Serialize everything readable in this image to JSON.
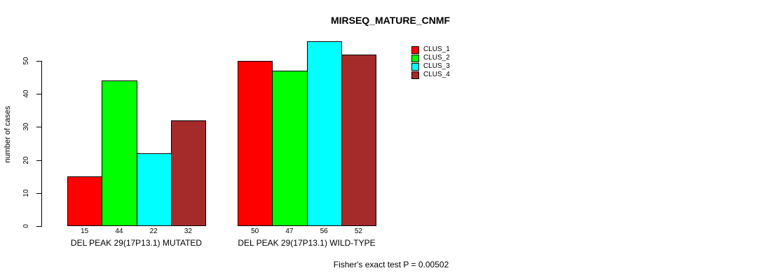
{
  "chart_data": {
    "type": "bar",
    "title": "MIRSEQ_MATURE_CNMF",
    "ylabel": "number of cases",
    "xlabel": "",
    "ylim": [
      0,
      56
    ],
    "yticks": [
      0,
      10,
      20,
      30,
      40,
      50
    ],
    "grid": false,
    "legend_position": "top-right",
    "show_bar_value_labels": true,
    "categories": [
      "DEL PEAK 29(17P13.1) MUTATED",
      "DEL PEAK 29(17P13.1) WILD-TYPE"
    ],
    "series": [
      {
        "name": "CLUS_1",
        "color": "#FF0000",
        "values": [
          15,
          50
        ]
      },
      {
        "name": "CLUS_2",
        "color": "#00FF00",
        "values": [
          44,
          47
        ]
      },
      {
        "name": "CLUS_3",
        "color": "#00FFFF",
        "values": [
          22,
          56
        ]
      },
      {
        "name": "CLUS_4",
        "color": "#A52A2A",
        "values": [
          32,
          52
        ]
      }
    ],
    "caption": "Fisher's exact test P = 0.00502",
    "text_color": "#000000",
    "background_color": "#FFFFFF"
  }
}
